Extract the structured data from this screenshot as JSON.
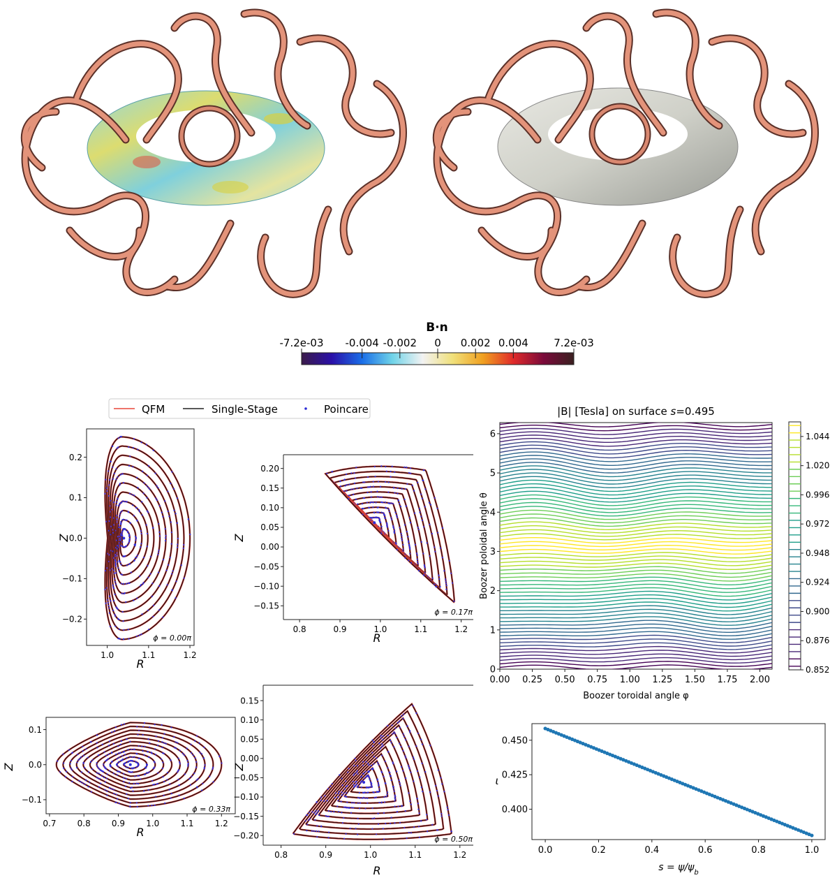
{
  "colorbar": {
    "title": "B·n",
    "tick_labels": [
      "-7.2e-03",
      "-0.004",
      "-0.002",
      "0",
      "0.002",
      "0.004",
      "7.2e-03"
    ],
    "tick_values": [
      -0.0072,
      -0.004,
      -0.002,
      0,
      0.002,
      0.004,
      0.0072
    ],
    "colors": [
      "#3b1b4a",
      "#2a10a8",
      "#1a6ee8",
      "#6fd3e8",
      "#f2f2f2",
      "#f0e07a",
      "#f0a020",
      "#e02a2a",
      "#7a0a3a",
      "#3a2020"
    ]
  },
  "renders": {
    "coil_color": "#e3937a",
    "left_surface_colors": [
      "#7fd6e0",
      "#d9d964",
      "#e8e8e8"
    ],
    "right_surface_color": "#dcdcd6"
  },
  "legend": {
    "items": [
      {
        "label": "QFM",
        "color": "#e8473a",
        "kind": "line"
      },
      {
        "label": "Single-Stage",
        "color": "#222222",
        "kind": "line"
      },
      {
        "label": "Poincare",
        "color": "#2b2bd6",
        "kind": "dot"
      }
    ]
  },
  "chart_data": [
    {
      "type": "line",
      "id": "poincare_phi0",
      "annotation": "ϕ = 0.00π",
      "xlabel": "R",
      "ylabel": "Z",
      "xlim": [
        0.95,
        1.21
      ],
      "ylim": [
        -0.265,
        0.27
      ],
      "x_ticks": [
        "1.0",
        "1.1",
        "1.2"
      ],
      "x_tick_values": [
        1.0,
        1.1,
        1.2
      ],
      "y_ticks": [
        "−0.2",
        "−0.1",
        "0.0",
        "0.1",
        "0.2"
      ],
      "y_tick_values": [
        -0.2,
        -0.1,
        0.0,
        0.1,
        0.2
      ],
      "shape": {
        "kind": "d",
        "axis": [
          1.04,
          0.0
        ],
        "inner_r": 0.975,
        "outer_r": 1.2,
        "zmax": 0.25
      },
      "n_surfaces": 11
    },
    {
      "type": "line",
      "id": "poincare_phi017",
      "annotation": "ϕ = 0.17π",
      "xlabel": "R",
      "ylabel": "Z",
      "xlim": [
        0.76,
        1.23
      ],
      "ylim": [
        -0.185,
        0.235
      ],
      "x_ticks": [
        "0.8",
        "0.9",
        "1.0",
        "1.1",
        "1.2"
      ],
      "x_tick_values": [
        0.8,
        0.9,
        1.0,
        1.1,
        1.2
      ],
      "y_ticks": [
        "−0.15",
        "−0.10",
        "−0.05",
        "0.00",
        "0.05",
        "0.10",
        "0.15",
        "0.20"
      ],
      "y_tick_values": [
        -0.15,
        -0.1,
        -0.05,
        0.0,
        0.05,
        0.1,
        0.15,
        0.2
      ],
      "shape": {
        "kind": "tri",
        "axis": [
          0.985,
          0.062
        ],
        "outer": [
          [
            0.84,
            0.2
          ],
          [
            1.12,
            0.21
          ],
          [
            1.2,
            -0.17
          ]
        ]
      },
      "n_surfaces": 11
    },
    {
      "type": "line",
      "id": "poincare_phi033",
      "annotation": "ϕ = 0.33π",
      "xlabel": "R",
      "ylabel": "Z",
      "xlim": [
        0.69,
        1.24
      ],
      "ylim": [
        -0.14,
        0.135
      ],
      "x_ticks": [
        "0.7",
        "0.8",
        "0.9",
        "1.0",
        "1.1",
        "1.2"
      ],
      "x_tick_values": [
        0.7,
        0.8,
        0.9,
        1.0,
        1.1,
        1.2
      ],
      "y_ticks": [
        "−0.1",
        "0.0",
        "0.1"
      ],
      "y_tick_values": [
        -0.1,
        0.0,
        0.1
      ],
      "shape": {
        "kind": "bean",
        "axis": [
          0.935,
          0.0
        ],
        "left": 0.72,
        "right": 1.2,
        "zmax": 0.12
      },
      "n_surfaces": 11
    },
    {
      "type": "line",
      "id": "poincare_phi050",
      "annotation": "ϕ = 0.50π",
      "xlabel": "R",
      "ylabel": "Z",
      "xlim": [
        0.76,
        1.23
      ],
      "ylim": [
        -0.225,
        0.19
      ],
      "x_ticks": [
        "0.8",
        "0.9",
        "1.0",
        "1.1",
        "1.2"
      ],
      "x_tick_values": [
        0.8,
        0.9,
        1.0,
        1.1,
        1.2
      ],
      "y_ticks": [
        "−0.20",
        "−0.15",
        "−0.10",
        "−0.05",
        "0.00",
        "0.05",
        "0.10",
        "0.15"
      ],
      "y_tick_values": [
        -0.2,
        -0.15,
        -0.1,
        -0.05,
        0.0,
        0.05,
        0.1,
        0.15
      ],
      "shape": {
        "kind": "tri",
        "axis": [
          0.985,
          -0.062
        ],
        "outer": [
          [
            1.1,
            0.17
          ],
          [
            1.2,
            -0.21
          ],
          [
            0.8,
            -0.21
          ]
        ]
      },
      "n_surfaces": 11
    },
    {
      "type": "heatmap",
      "id": "boozer_modB",
      "title": "|B| [Tesla] on surface s=0.495",
      "title_prefix": "|B| [Tesla] on surface ",
      "title_s": "s",
      "title_suffix": "=0.495",
      "xlabel": "Boozer toroidal angle φ",
      "ylabel": "Boozer poloidal angle θ",
      "xlim": [
        0,
        2.094
      ],
      "ylim": [
        0,
        6.283
      ],
      "x_ticks": [
        "0.00",
        "0.25",
        "0.50",
        "0.75",
        "1.00",
        "1.25",
        "1.50",
        "1.75",
        "2.00"
      ],
      "x_tick_values": [
        0,
        0.25,
        0.5,
        0.75,
        1.0,
        1.25,
        1.5,
        1.75,
        2.0
      ],
      "y_ticks": [
        "0",
        "1",
        "2",
        "3",
        "4",
        "5",
        "6"
      ],
      "y_tick_values": [
        0,
        1,
        2,
        3,
        4,
        5,
        6
      ],
      "colorbar_ticks": [
        "0.852",
        "0.876",
        "0.900",
        "0.924",
        "0.948",
        "0.972",
        "0.996",
        "1.020",
        "1.044"
      ],
      "colorbar_tick_values": [
        0.852,
        0.876,
        0.9,
        0.924,
        0.948,
        0.972,
        0.996,
        1.02,
        1.044
      ],
      "value_range": [
        0.852,
        1.056
      ],
      "n_levels": 34
    },
    {
      "type": "scatter",
      "id": "iota_profile",
      "xlabel": "s = ψ/ψ_b",
      "ylabel": "ι",
      "xlim": [
        -0.05,
        1.05
      ],
      "ylim": [
        0.378,
        0.462
      ],
      "x_ticks": [
        "0.0",
        "0.2",
        "0.4",
        "0.6",
        "0.8",
        "1.0"
      ],
      "x_tick_values": [
        0,
        0.2,
        0.4,
        0.6,
        0.8,
        1.0
      ],
      "y_ticks": [
        "0.400",
        "0.425",
        "0.450"
      ],
      "y_tick_values": [
        0.4,
        0.425,
        0.45
      ],
      "series": [
        {
          "x_start": 0.0,
          "x_end": 1.0,
          "y_start": 0.4585,
          "y_end": 0.381,
          "n_points": 100,
          "color": "#1f77b4"
        }
      ]
    }
  ]
}
